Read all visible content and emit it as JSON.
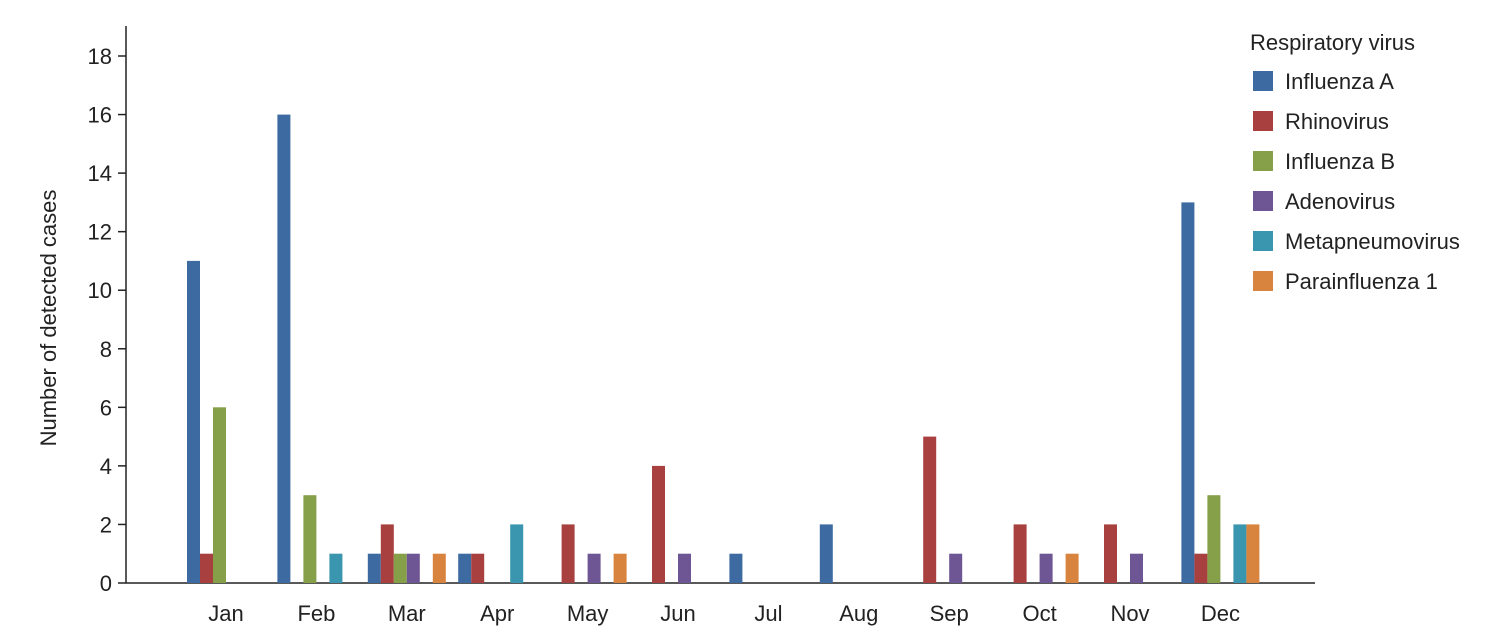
{
  "chart_data": {
    "type": "bar",
    "title": "",
    "xlabel": "",
    "ylabel": "Number of detected cases",
    "ylim": [
      0,
      18
    ],
    "yticks": [
      0,
      2,
      4,
      6,
      8,
      10,
      12,
      14,
      16,
      18
    ],
    "grid": false,
    "legend": {
      "title": "Respiratory virus",
      "placement": "top-right"
    },
    "categories": [
      "Jan",
      "Feb",
      "Mar",
      "Apr",
      "May",
      "Jun",
      "Jul",
      "Aug",
      "Sep",
      "Oct",
      "Nov",
      "Dec"
    ],
    "series": [
      {
        "name": "Influenza A",
        "color": "#3d6aa1",
        "values": [
          11,
          16,
          1,
          1,
          0,
          0,
          1,
          2,
          0,
          0,
          0,
          13
        ]
      },
      {
        "name": "Rhinovirus",
        "color": "#a8403f",
        "values": [
          1,
          0,
          2,
          1,
          2,
          4,
          0,
          0,
          5,
          2,
          2,
          1
        ]
      },
      {
        "name": "Influenza B",
        "color": "#86a04a",
        "values": [
          6,
          3,
          1,
          0,
          0,
          0,
          0,
          0,
          0,
          0,
          0,
          3
        ]
      },
      {
        "name": "Adenovirus",
        "color": "#6e5593",
        "values": [
          0,
          0,
          1,
          0,
          1,
          1,
          0,
          0,
          1,
          1,
          1,
          0
        ]
      },
      {
        "name": "Metapneumovirus",
        "color": "#3996ae",
        "values": [
          0,
          1,
          0,
          2,
          0,
          0,
          0,
          0,
          0,
          0,
          0,
          2
        ]
      },
      {
        "name": "Parainfluenza 1",
        "color": "#d9843e",
        "values": [
          0,
          0,
          1,
          0,
          1,
          0,
          0,
          0,
          0,
          1,
          0,
          2
        ]
      }
    ]
  }
}
